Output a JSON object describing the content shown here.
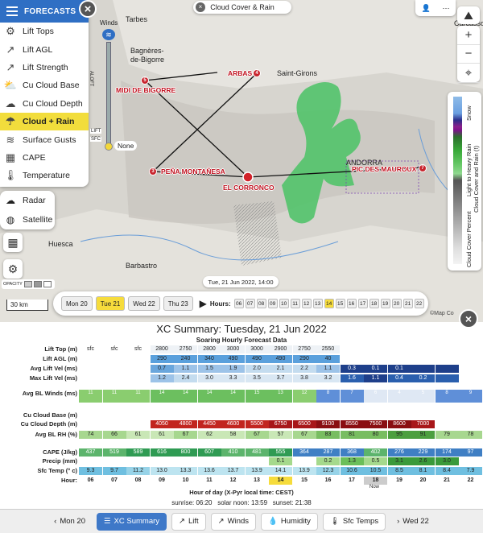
{
  "forecasts": {
    "header": "FORECASTS",
    "items": [
      {
        "label": "Lift Tops",
        "icon": "gear-icon",
        "glyph": "⚙"
      },
      {
        "label": "Lift AGL",
        "icon": "arrow-up-icon",
        "glyph": "↗"
      },
      {
        "label": "Lift Strength",
        "icon": "arrow-up-icon",
        "glyph": "↗"
      },
      {
        "label": "Cu Cloud Base",
        "icon": "cloud-sun-icon",
        "glyph": "⛅"
      },
      {
        "label": "Cu Cloud Depth",
        "icon": "cloud-icon",
        "glyph": "☁"
      },
      {
        "label": "Cloud + Rain",
        "icon": "cloud-rain-icon",
        "glyph": "☂"
      },
      {
        "label": "Surface Gusts",
        "icon": "wind-icon",
        "glyph": "≋"
      },
      {
        "label": "CAPE",
        "icon": "cape-icon",
        "glyph": "▦"
      },
      {
        "label": "Temperature",
        "icon": "thermometer-icon",
        "glyph": "🌡"
      }
    ],
    "active": "Cloud + Rain"
  },
  "radar": {
    "items": [
      {
        "label": "Radar",
        "glyph": "☁"
      },
      {
        "label": "Satellite",
        "glyph": "◍"
      }
    ]
  },
  "map": {
    "title": "Cloud Cover & Rain",
    "winds_label": "Winds",
    "alofts_label": "ALOFT",
    "lift_label": "LIFT",
    "sfc_label": "SFC",
    "none_label": "None",
    "opacity_label": "OPACITY",
    "scale": "30 km",
    "date": "Tue, 21 Jun 2022, 14:00",
    "copyright": "©Map Co",
    "cities": [
      {
        "name": "Tarbes"
      },
      {
        "name": "Bagnères-"
      },
      {
        "name": "de-Bigorre"
      },
      {
        "name": "Saint-Girons"
      },
      {
        "name": "Carcasso"
      },
      {
        "name": "Huesca"
      },
      {
        "name": "Barbastro"
      },
      {
        "name": "ANDORRA"
      }
    ],
    "sites": [
      {
        "name": "ARBAS",
        "num": "4"
      },
      {
        "name": "MIDI DE BIGORRE",
        "num": "5"
      },
      {
        "name": "PEÑA MONTAÑESA",
        "num": "3"
      },
      {
        "name": "EL CORRONCO",
        "num": ""
      },
      {
        "name": "PIC DES MAUROUX",
        "num": "7"
      }
    ],
    "legend": {
      "snow": "Snow",
      "rain": "Light to Heavy Rain",
      "cloud_rain": "Cloud Cover and Rain (!)",
      "cloud": "Cloud Cover Percent"
    }
  },
  "timebar": {
    "days": [
      {
        "label": "Mon 20"
      },
      {
        "label": "Tue 21"
      },
      {
        "label": "Wed 22"
      },
      {
        "label": "Thu 23"
      }
    ],
    "active_day": "Tue 21",
    "hours_label": "Hours:",
    "hours": [
      "06",
      "07",
      "08",
      "09",
      "10",
      "11",
      "12",
      "13",
      "14",
      "15",
      "16",
      "17",
      "18",
      "19",
      "20",
      "21",
      "22"
    ],
    "active_hour": "14"
  },
  "xc": {
    "title": "XC Summary: Tuesday, 21 Jun 2022",
    "subtitle": "Soaring Hourly Forecast Data",
    "rows": [
      {
        "label": "Lift Top (m)",
        "values": [
          "sfc",
          "sfc",
          "sfc",
          "2800",
          "2750",
          "2800",
          "3000",
          "3000",
          "2900",
          "2750",
          "2550",
          "",
          "",
          "",
          ""
        ]
      },
      {
        "label": "Lift AGL (m)",
        "values": [
          "",
          "",
          "",
          "290",
          "240",
          "340",
          "490",
          "490",
          "490",
          "290",
          "40",
          "",
          "",
          "",
          ""
        ]
      },
      {
        "label": "Avg Lift Vel (ms)",
        "values": [
          "",
          "",
          "",
          "0.7",
          "1.1",
          "1.5",
          "1.9",
          "2.0",
          "2.1",
          "2.2",
          "1.1",
          "0.3",
          "0.1",
          "0.1",
          "",
          ""
        ]
      },
      {
        "label": "Max Lift Vel (ms)",
        "values": [
          "",
          "",
          "",
          "1.2",
          "2.4",
          "3.0",
          "3.3",
          "3.5",
          "3.7",
          "3.8",
          "3.2",
          "1.6",
          "1.1",
          "0.4",
          "0.2",
          ""
        ]
      },
      {
        "label": "Avg BL Winds (ms)",
        "values": [
          "11",
          "11",
          "11",
          "14",
          "14",
          "14",
          "14",
          "15",
          "13",
          "12",
          "8",
          "7",
          "6",
          "4",
          "5",
          "8",
          "9"
        ]
      },
      {
        "label": "Cu Cloud Base (m)",
        "values": []
      },
      {
        "label": "Cu Cloud Depth (m)",
        "values": [
          "",
          "",
          "",
          "4050",
          "4800",
          "4450",
          "4600",
          "5500",
          "6750",
          "6500",
          "9100",
          "8550",
          "7500",
          "8600",
          "7000",
          ""
        ]
      },
      {
        "label": "Avg BL RH (%)",
        "values": [
          "74",
          "66",
          "61",
          "61",
          "67",
          "62",
          "58",
          "67",
          "57",
          "67",
          "83",
          "81",
          "80",
          "95",
          "91",
          "79",
          "78"
        ]
      },
      {
        "label": "CAPE (J/kg)",
        "values": [
          "437",
          "519",
          "589",
          "616",
          "800",
          "607",
          "410",
          "481",
          "555",
          "364",
          "287",
          "368",
          "402",
          "276",
          "229",
          "174",
          "97"
        ]
      },
      {
        "label": "Precip (mm)",
        "values": [
          "",
          "",
          "",
          "",
          "",
          "",
          "",
          "",
          "0.1",
          "",
          "0.2",
          "1.3",
          "0.5",
          "3.1",
          "2.6",
          "3.0",
          ""
        ]
      },
      {
        "label": "Sfc Temp (° c)",
        "values": [
          "9.3",
          "9.7",
          "11.2",
          "13.0",
          "13.3",
          "13.6",
          "13.7",
          "13.9",
          "14.1",
          "13.9",
          "12.3",
          "10.6",
          "10.5",
          "8.5",
          "8.1",
          "8.4",
          "7.9"
        ]
      },
      {
        "label": "Hour:",
        "values": [
          "06",
          "07",
          "08",
          "09",
          "10",
          "11",
          "12",
          "13",
          "14",
          "15",
          "16",
          "17",
          "18",
          "19",
          "20",
          "21",
          "22"
        ]
      }
    ],
    "now_label": "Now",
    "axis_label": "Hour of day (X-Pyr local time: CEST)",
    "sunrise": "sunrise: 06:20",
    "noon": "solar noon: 13:59",
    "sunset": "sunset: 21:38"
  },
  "bottom": {
    "prev": "Mon 20",
    "tabs": [
      {
        "label": "XC Summary",
        "icon": "table-icon",
        "glyph": "☰"
      },
      {
        "label": "Lift",
        "icon": "arrow-up-icon",
        "glyph": "↗"
      },
      {
        "label": "Winds",
        "icon": "wind-icon",
        "glyph": "↗"
      },
      {
        "label": "Humidity",
        "icon": "drop-icon",
        "glyph": "💧"
      },
      {
        "label": "Sfc Temps",
        "icon": "thermometer-icon",
        "glyph": "🌡"
      }
    ],
    "next": "Wed 22"
  }
}
